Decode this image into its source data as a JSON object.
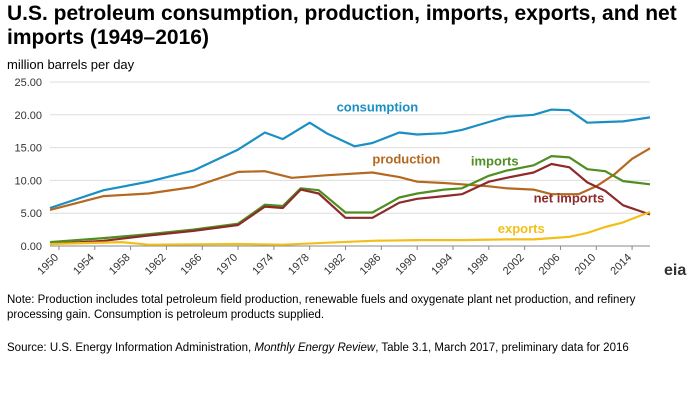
{
  "header": {
    "title": "U.S. petroleum consumption, production, imports, exports, and net imports (1949–2016)",
    "unit": "million barrels per day"
  },
  "footer": {
    "note": "Note: Production includes total petroleum field production, renewable fuels and oxygenate plant net production, and refinery processing gain. Consumption is petroleum products supplied.",
    "source_prefix": "Source: U.S. Energy Information Administration, ",
    "source_pub": "Monthly Energy Review",
    "source_suffix": ", Table 3.1, March 2017, preliminary data for 2016"
  },
  "logo": {
    "text": "eia"
  },
  "chart_data": {
    "type": "line",
    "title": "U.S. petroleum consumption, production, imports, exports, and net imports (1949–2016)",
    "ylabel": "million barrels per day",
    "xlabel": "",
    "ylim": [
      0,
      25
    ],
    "yticks": [
      0,
      5,
      10,
      15,
      20,
      25
    ],
    "ytick_labels": [
      "0.00",
      "5.00",
      "10.00",
      "15.00",
      "20.00",
      "25.00"
    ],
    "xticks": [
      1950,
      1954,
      1958,
      1962,
      1966,
      1970,
      1974,
      1978,
      1982,
      1986,
      1990,
      1994,
      1998,
      2002,
      2006,
      2010,
      2014
    ],
    "grid": true,
    "series": [
      {
        "name": "consumption",
        "label": "consumption",
        "color": "#1a8fc4",
        "x": [
          1949,
          1955,
          1960,
          1965,
          1970,
          1973,
          1975,
          1978,
          1980,
          1983,
          1985,
          1988,
          1990,
          1993,
          1995,
          1998,
          2000,
          2003,
          2005,
          2007,
          2009,
          2011,
          2013,
          2016
        ],
        "values": [
          5.8,
          8.5,
          9.8,
          11.5,
          14.7,
          17.3,
          16.3,
          18.8,
          17.1,
          15.2,
          15.7,
          17.3,
          17.0,
          17.2,
          17.7,
          18.9,
          19.7,
          20.0,
          20.8,
          20.7,
          18.8,
          18.9,
          19.0,
          19.6
        ]
      },
      {
        "name": "production",
        "label": "production",
        "color": "#b5681f",
        "x": [
          1949,
          1955,
          1960,
          1965,
          1970,
          1973,
          1976,
          1980,
          1985,
          1988,
          1990,
          1993,
          1995,
          1998,
          2000,
          2003,
          2005,
          2008,
          2010,
          2012,
          2014,
          2016
        ],
        "values": [
          5.5,
          7.6,
          8.0,
          9.0,
          11.3,
          11.4,
          10.4,
          10.8,
          11.2,
          10.5,
          9.8,
          9.6,
          9.4,
          9.1,
          8.8,
          8.6,
          7.9,
          7.9,
          9.1,
          10.9,
          13.3,
          14.9
        ]
      },
      {
        "name": "imports",
        "label": "imports",
        "color": "#4f8e21",
        "x": [
          1949,
          1955,
          1960,
          1965,
          1970,
          1973,
          1975,
          1977,
          1979,
          1982,
          1985,
          1988,
          1990,
          1993,
          1995,
          1998,
          2000,
          2003,
          2005,
          2007,
          2009,
          2011,
          2013,
          2016
        ],
        "values": [
          0.6,
          1.2,
          1.8,
          2.5,
          3.4,
          6.3,
          6.1,
          8.8,
          8.5,
          5.1,
          5.1,
          7.4,
          8.0,
          8.6,
          8.8,
          10.7,
          11.5,
          12.3,
          13.7,
          13.5,
          11.7,
          11.4,
          9.9,
          9.4
        ]
      },
      {
        "name": "net imports",
        "label": "net imports",
        "color": "#8e2a2a",
        "x": [
          1949,
          1955,
          1960,
          1965,
          1970,
          1973,
          1975,
          1977,
          1979,
          1982,
          1985,
          1988,
          1990,
          1993,
          1995,
          1998,
          2000,
          2003,
          2005,
          2007,
          2009,
          2011,
          2013,
          2016
        ],
        "values": [
          0.3,
          0.8,
          1.6,
          2.3,
          3.2,
          6.0,
          5.8,
          8.6,
          8.0,
          4.3,
          4.3,
          6.6,
          7.2,
          7.6,
          7.9,
          9.8,
          10.4,
          11.2,
          12.5,
          12.0,
          9.7,
          8.4,
          6.2,
          4.8
        ]
      },
      {
        "name": "exports",
        "label": "exports",
        "color": "#f2bf1a",
        "x": [
          1949,
          1957,
          1960,
          1970,
          1975,
          1980,
          1985,
          1990,
          1995,
          2000,
          2003,
          2005,
          2007,
          2009,
          2011,
          2013,
          2016
        ],
        "values": [
          0.3,
          0.6,
          0.2,
          0.3,
          0.2,
          0.5,
          0.8,
          0.9,
          0.9,
          1.0,
          1.0,
          1.2,
          1.4,
          2.0,
          2.9,
          3.6,
          5.2
        ]
      }
    ]
  }
}
